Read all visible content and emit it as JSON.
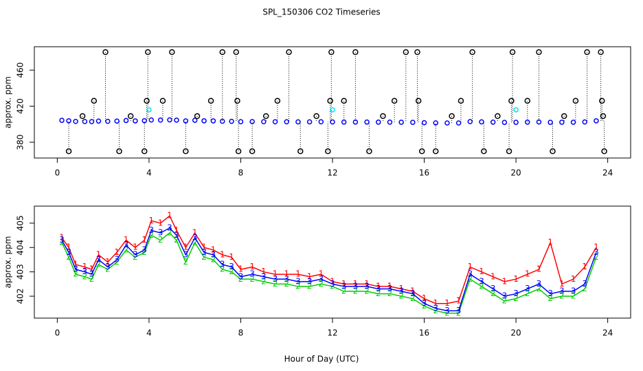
{
  "chart_data": [
    {
      "type": "scatter",
      "title": "SPL_150306  CO2 Timeseries",
      "ylabel": "approx. ppm",
      "xlim": [
        -1,
        25
      ],
      "ylim": [
        362.5,
        486
      ],
      "xticks": [
        0,
        4,
        8,
        12,
        16,
        20,
        24
      ],
      "yticks": [
        380,
        420,
        460
      ],
      "series": [
        {
          "color": "#0000ff",
          "drop_lines": false,
          "x": [
            0.2,
            0.5,
            0.8,
            1.2,
            1.5,
            1.8,
            2.2,
            2.6,
            3.0,
            3.4,
            3.8,
            4.1,
            4.5,
            4.9,
            5.2,
            5.6,
            6.0,
            6.4,
            6.8,
            7.2,
            7.6,
            8.0,
            8.5,
            9.0,
            9.5,
            10.0,
            10.5,
            11.0,
            11.5,
            12.0,
            12.5,
            13.0,
            13.5,
            14.0,
            14.5,
            15.0,
            15.5,
            16.0,
            16.5,
            17.0,
            17.5,
            18.0,
            18.5,
            19.0,
            19.5,
            20.0,
            20.5,
            21.0,
            21.5,
            22.0,
            22.5,
            23.0,
            23.5
          ],
          "values": [
            404.3,
            403.8,
            403.1,
            403.0,
            402.9,
            403.5,
            403.2,
            403.5,
            404.1,
            403.7,
            403.9,
            404.7,
            404.6,
            404.8,
            404.5,
            403.7,
            404.4,
            403.8,
            403.7,
            403.3,
            403.2,
            402.8,
            402.9,
            402.8,
            402.7,
            402.7,
            402.6,
            402.6,
            402.7,
            402.5,
            402.4,
            402.4,
            402.4,
            402.3,
            402.3,
            402.2,
            402.1,
            401.7,
            401.5,
            401.4,
            401.4,
            402.9,
            402.6,
            402.3,
            402.0,
            402.1,
            402.3,
            402.5,
            402.1,
            402.2,
            402.2,
            402.5,
            403.8
          ]
        },
        {
          "color": "#000000",
          "drop_lines": true,
          "x": [
            0.5,
            1.1,
            1.6,
            2.1,
            2.7,
            3.2,
            3.8,
            3.9,
            3.95,
            4.6,
            5.0,
            5.6,
            6.1,
            6.7,
            7.2,
            7.8,
            7.85,
            7.9,
            8.5,
            9.1,
            9.6,
            10.1,
            10.6,
            11.3,
            11.8,
            11.9,
            11.95,
            12.5,
            13.0,
            13.6,
            14.2,
            14.7,
            15.2,
            15.7,
            15.75,
            15.9,
            16.5,
            17.2,
            17.6,
            18.1,
            18.6,
            19.2,
            19.7,
            19.8,
            19.85,
            20.5,
            21.0,
            21.6,
            22.1,
            22.6,
            23.1,
            23.7,
            23.75,
            23.8,
            23.85
          ],
          "values": [
            370,
            409,
            426,
            480,
            370,
            409,
            370,
            426,
            480,
            426,
            480,
            370,
            409,
            426,
            480,
            480,
            426,
            370,
            370,
            409,
            426,
            480,
            370,
            409,
            370,
            426,
            480,
            426,
            480,
            370,
            409,
            426,
            480,
            480,
            426,
            370,
            370,
            409,
            426,
            480,
            370,
            409,
            370,
            426,
            480,
            426,
            480,
            370,
            409,
            426,
            480,
            480,
            426,
            409,
            370
          ]
        },
        {
          "color": "#00e5ee",
          "drop_lines": false,
          "x": [
            4.0,
            12.0,
            20.0
          ],
          "values": [
            416,
            416,
            416
          ]
        }
      ]
    },
    {
      "type": "line",
      "ylabel": "approx. ppm",
      "xlabel": "Hour of Day (UTC)",
      "xlim": [
        -1,
        25
      ],
      "ylim": [
        401.1,
        405.7
      ],
      "xticks": [
        0,
        4,
        8,
        12,
        16,
        20,
        24
      ],
      "yticks": [
        402,
        403,
        404,
        405
      ],
      "series": [
        {
          "color": "#ff0000",
          "marker": "1",
          "x": [
            0.2,
            0.5,
            0.8,
            1.2,
            1.5,
            1.8,
            2.2,
            2.6,
            3.0,
            3.4,
            3.8,
            4.1,
            4.5,
            4.9,
            5.2,
            5.6,
            6.0,
            6.4,
            6.8,
            7.2,
            7.6,
            8.0,
            8.5,
            9.0,
            9.5,
            10.0,
            10.5,
            11.0,
            11.5,
            12.0,
            12.5,
            13.0,
            13.5,
            14.0,
            14.5,
            15.0,
            15.5,
            16.0,
            16.5,
            17.0,
            17.5,
            18.0,
            18.5,
            19.0,
            19.5,
            20.0,
            20.5,
            21.0,
            21.5,
            22.0,
            22.5,
            23.0,
            23.5
          ],
          "values": [
            404.4,
            404.0,
            403.3,
            403.2,
            403.1,
            403.7,
            403.4,
            403.8,
            404.3,
            404.0,
            404.3,
            405.1,
            405.0,
            405.3,
            404.7,
            404.0,
            404.6,
            404.0,
            403.9,
            403.7,
            403.6,
            403.1,
            403.2,
            403.0,
            402.9,
            402.9,
            402.9,
            402.8,
            402.9,
            402.6,
            402.5,
            402.5,
            402.5,
            402.4,
            402.4,
            402.3,
            402.2,
            401.9,
            401.7,
            401.7,
            401.8,
            403.2,
            403.0,
            402.8,
            402.6,
            402.7,
            402.9,
            403.1,
            404.2,
            402.5,
            402.7,
            403.2,
            404.0
          ]
        },
        {
          "color": "#00cd00",
          "marker": "2",
          "x": [
            0.2,
            0.5,
            0.8,
            1.2,
            1.5,
            1.8,
            2.2,
            2.6,
            3.0,
            3.4,
            3.8,
            4.1,
            4.5,
            4.9,
            5.2,
            5.6,
            6.0,
            6.4,
            6.8,
            7.2,
            7.6,
            8.0,
            8.5,
            9.0,
            9.5,
            10.0,
            10.5,
            11.0,
            11.5,
            12.0,
            12.5,
            13.0,
            13.5,
            14.0,
            14.5,
            15.0,
            15.5,
            16.0,
            16.5,
            17.0,
            17.5,
            18.0,
            18.5,
            19.0,
            19.5,
            20.0,
            20.5,
            21.0,
            21.5,
            22.0,
            22.5,
            23.0,
            23.5
          ],
          "values": [
            404.2,
            403.6,
            402.9,
            402.8,
            402.7,
            403.3,
            403.1,
            403.4,
            403.9,
            403.6,
            403.8,
            404.5,
            404.3,
            404.6,
            404.3,
            403.4,
            404.2,
            403.6,
            403.5,
            403.1,
            403.0,
            402.7,
            402.7,
            402.6,
            402.5,
            402.5,
            402.4,
            402.4,
            402.5,
            402.4,
            402.2,
            402.2,
            402.2,
            402.1,
            402.1,
            402.0,
            401.9,
            401.6,
            401.4,
            401.3,
            401.3,
            402.7,
            402.4,
            402.1,
            401.8,
            401.9,
            402.1,
            402.3,
            401.9,
            402.0,
            402.0,
            402.3,
            403.6
          ]
        },
        {
          "color": "#0000ff",
          "marker": "3",
          "x": [
            0.2,
            0.5,
            0.8,
            1.2,
            1.5,
            1.8,
            2.2,
            2.6,
            3.0,
            3.4,
            3.8,
            4.1,
            4.5,
            4.9,
            5.2,
            5.6,
            6.0,
            6.4,
            6.8,
            7.2,
            7.6,
            8.0,
            8.5,
            9.0,
            9.5,
            10.0,
            10.5,
            11.0,
            11.5,
            12.0,
            12.5,
            13.0,
            13.5,
            14.0,
            14.5,
            15.0,
            15.5,
            16.0,
            16.5,
            17.0,
            17.5,
            18.0,
            18.5,
            19.0,
            19.5,
            20.0,
            20.5,
            21.0,
            21.5,
            22.0,
            22.5,
            23.0,
            23.5
          ],
          "values": [
            404.3,
            403.8,
            403.1,
            403.0,
            402.9,
            403.5,
            403.2,
            403.5,
            404.1,
            403.7,
            403.9,
            404.7,
            404.6,
            404.8,
            404.5,
            403.7,
            404.4,
            403.8,
            403.7,
            403.3,
            403.2,
            402.8,
            402.9,
            402.8,
            402.7,
            402.7,
            402.6,
            402.6,
            402.7,
            402.5,
            402.4,
            402.4,
            402.4,
            402.3,
            402.3,
            402.2,
            402.1,
            401.7,
            401.5,
            401.4,
            401.4,
            402.9,
            402.6,
            402.3,
            402.0,
            402.1,
            402.3,
            402.5,
            402.1,
            402.2,
            402.2,
            402.5,
            403.8
          ]
        }
      ]
    }
  ]
}
